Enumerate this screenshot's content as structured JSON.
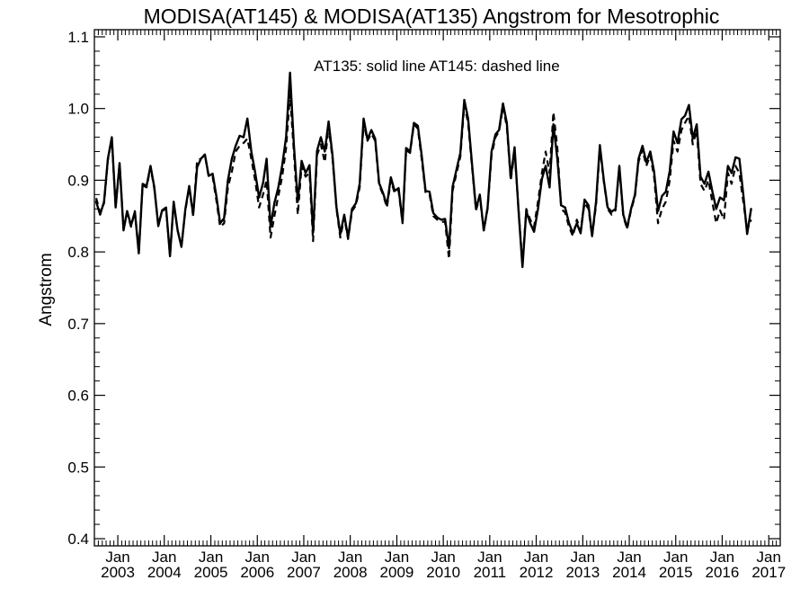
{
  "chart_data": {
    "type": "line",
    "title": "MODISA(AT145) & MODISA(AT135)  Angstrom for Mesotrophic",
    "ylabel": "Angstrom",
    "xlabel": "",
    "annotation": "AT135: solid line   AT145: dashed line",
    "ylim": [
      0.39,
      1.11
    ],
    "yticks": [
      0.4,
      0.5,
      0.6,
      0.7,
      0.8,
      0.9,
      1.0,
      1.1
    ],
    "ytick_labels": [
      "0.4",
      "0.5",
      "0.6",
      "0.7",
      "0.8",
      "0.9",
      "1.0",
      "1.1"
    ],
    "xlim": [
      "2002-07-01",
      "2017-04-01"
    ],
    "x_month_label": "Jan",
    "x_years": [
      "2003",
      "2004",
      "2005",
      "2006",
      "2007",
      "2008",
      "2009",
      "2010",
      "2011",
      "2012",
      "2013",
      "2014",
      "2015",
      "2016",
      "2017"
    ],
    "grid": false,
    "series": [
      {
        "name": "AT135",
        "style": "solid",
        "color": "#000000",
        "start": "2002-07",
        "values": [
          0.87,
          0.852,
          0.87,
          0.93,
          0.96,
          0.862,
          0.924,
          0.83,
          0.857,
          0.837,
          0.856,
          0.798,
          0.895,
          0.892,
          0.92,
          0.89,
          0.836,
          0.858,
          0.862,
          0.794,
          0.87,
          0.83,
          0.807,
          0.86,
          0.892,
          0.852,
          0.918,
          0.93,
          0.936,
          0.906,
          0.909,
          0.876,
          0.84,
          0.847,
          0.9,
          0.93,
          0.948,
          0.962,
          0.96,
          0.986,
          0.94,
          0.911,
          0.876,
          0.896,
          0.93,
          0.835,
          0.868,
          0.89,
          0.92,
          0.96,
          1.05,
          0.95,
          0.87,
          0.927,
          0.91,
          0.921,
          0.827,
          0.941,
          0.96,
          0.94,
          0.982,
          0.934,
          0.862,
          0.825,
          0.852,
          0.82,
          0.86,
          0.868,
          0.895,
          0.986,
          0.957,
          0.97,
          0.958,
          0.896,
          0.882,
          0.865,
          0.904,
          0.885,
          0.889,
          0.841,
          0.945,
          0.94,
          0.98,
          0.976,
          0.935,
          0.885,
          0.884,
          0.854,
          0.848,
          0.845,
          0.846,
          0.805,
          0.891,
          0.915,
          0.938,
          1.012,
          0.986,
          0.922,
          0.86,
          0.88,
          0.83,
          0.862,
          0.94,
          0.964,
          0.97,
          1.007,
          0.98,
          0.903,
          0.946,
          0.858,
          0.779,
          0.857,
          0.84,
          0.828,
          0.86,
          0.902,
          0.92,
          0.89,
          0.978,
          0.93,
          0.865,
          0.862,
          0.84,
          0.826,
          0.84,
          0.826,
          0.873,
          0.865,
          0.822,
          0.87,
          0.949,
          0.9,
          0.862,
          0.856,
          0.86,
          0.92,
          0.852,
          0.834,
          0.86,
          0.88,
          0.93,
          0.948,
          0.925,
          0.94,
          0.912,
          0.857,
          0.878,
          0.884,
          0.913,
          0.968,
          0.952,
          0.985,
          0.99,
          1.005,
          0.958,
          0.978,
          0.905,
          0.895,
          0.912,
          0.885,
          0.86,
          0.876,
          0.872,
          0.92,
          0.91,
          0.932,
          0.93,
          0.88,
          0.825,
          0.86
        ]
      },
      {
        "name": "AT145",
        "style": "dashed",
        "color": "#000000",
        "start": "2002-07",
        "values": [
          0.875,
          0.855,
          0.868,
          0.928,
          0.958,
          0.863,
          0.922,
          0.832,
          0.855,
          0.835,
          0.857,
          0.8,
          0.893,
          0.89,
          0.918,
          0.888,
          0.838,
          0.857,
          0.86,
          0.796,
          0.868,
          0.83,
          0.809,
          0.858,
          0.89,
          0.85,
          0.928,
          0.93,
          0.935,
          0.905,
          0.905,
          0.87,
          0.835,
          0.84,
          0.89,
          0.912,
          0.94,
          0.948,
          0.952,
          0.958,
          0.93,
          0.9,
          0.862,
          0.88,
          0.9,
          0.82,
          0.85,
          0.878,
          0.905,
          0.945,
          1.02,
          0.94,
          0.852,
          0.92,
          0.905,
          0.91,
          0.815,
          0.935,
          0.95,
          0.925,
          0.975,
          0.93,
          0.86,
          0.82,
          0.848,
          0.818,
          0.857,
          0.865,
          0.89,
          0.98,
          0.955,
          0.965,
          0.955,
          0.893,
          0.88,
          0.862,
          0.9,
          0.882,
          0.885,
          0.84,
          0.942,
          0.938,
          0.978,
          0.972,
          0.93,
          0.882,
          0.88,
          0.85,
          0.845,
          0.842,
          0.842,
          0.79,
          0.885,
          0.91,
          0.933,
          1.005,
          0.98,
          0.918,
          0.858,
          0.877,
          0.83,
          0.86,
          0.935,
          0.96,
          0.968,
          1.002,
          0.975,
          0.9,
          0.94,
          0.86,
          0.782,
          0.86,
          0.845,
          0.835,
          0.87,
          0.91,
          0.94,
          0.91,
          0.995,
          0.945,
          0.86,
          0.855,
          0.835,
          0.822,
          0.845,
          0.83,
          0.868,
          0.86,
          0.822,
          0.865,
          0.945,
          0.898,
          0.86,
          0.852,
          0.858,
          0.918,
          0.85,
          0.832,
          0.858,
          0.878,
          0.926,
          0.943,
          0.92,
          0.935,
          0.905,
          0.84,
          0.86,
          0.87,
          0.9,
          0.955,
          0.94,
          0.97,
          0.98,
          0.99,
          0.95,
          0.97,
          0.895,
          0.885,
          0.9,
          0.87,
          0.84,
          0.858,
          0.845,
          0.91,
          0.895,
          0.92,
          0.91,
          0.87,
          0.83,
          0.845
        ]
      }
    ]
  }
}
